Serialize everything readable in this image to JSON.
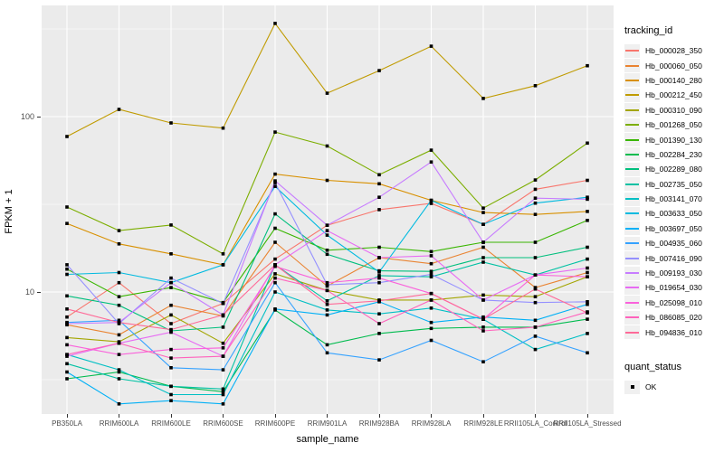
{
  "chart_data": {
    "type": "line",
    "title": "",
    "xlabel": "sample_name",
    "ylabel": "FPKM + 1",
    "y_scale": "log10",
    "grid": true,
    "legend_position": "right",
    "legend_title": "tracking_id",
    "legend2_title": "quant_status",
    "legend2_items": [
      "OK"
    ],
    "y_ticks": [
      {
        "label": "10",
        "value": 10
      },
      {
        "label": "100",
        "value": 100
      }
    ],
    "y_minor_values": [
      3.162,
      31.62,
      316.2
    ],
    "ylim": [
      2.0,
      430
    ],
    "categories": [
      "PB350LA",
      "RRIM600LA",
      "RRIM600LE",
      "RRIM600SE",
      "RRIM600PE",
      "RRIM901LA",
      "RRIM928BA",
      "RRIM928LA",
      "RRIM928LE",
      "RRII105LA_Control",
      "RRII105LA_Stressed"
    ],
    "series": [
      {
        "name": "Hb_000028_350",
        "color": "#F8766D",
        "values": [
          7.2,
          11.3,
          6.6,
          8.6,
          15.4,
          24.0,
          29.5,
          32.0,
          24.3,
          38.5,
          43.3
        ]
      },
      {
        "name": "Hb_000060_050",
        "color": "#EA8331",
        "values": [
          6.5,
          5.7,
          8.4,
          7.3,
          19.2,
          10.8,
          15.7,
          14.5,
          18.0,
          10.6,
          12.9
        ]
      },
      {
        "name": "Hb_000140_280",
        "color": "#D89000",
        "values": [
          24.6,
          18.8,
          16.5,
          14.3,
          47.0,
          43.3,
          41.4,
          33.3,
          28.4,
          27.7,
          28.8
        ]
      },
      {
        "name": "Hb_000212_450",
        "color": "#C09B00",
        "values": [
          77,
          110,
          92,
          86,
          340,
          136,
          183,
          252,
          127,
          150,
          195
        ]
      },
      {
        "name": "Hb_000310_090",
        "color": "#A3A500",
        "values": [
          5.5,
          5.2,
          7.4,
          5.1,
          12.7,
          10.2,
          9.0,
          9.0,
          9.6,
          9.4,
          12.2
        ]
      },
      {
        "name": "Hb_001268_050",
        "color": "#7CAE00",
        "values": [
          30.5,
          22.4,
          24.1,
          16.5,
          81.6,
          68.0,
          46.6,
          64.4,
          30.1,
          43.5,
          70.6
        ]
      },
      {
        "name": "Hb_001390_130",
        "color": "#39B600",
        "values": [
          13.5,
          9.4,
          10.6,
          8.7,
          23.1,
          17.3,
          18.0,
          17.0,
          19.2,
          19.2,
          25.6
        ]
      },
      {
        "name": "Hb_002284_230",
        "color": "#00BB4E",
        "values": [
          3.2,
          3.5,
          2.9,
          2.7,
          7.9,
          5.0,
          5.8,
          6.2,
          6.3,
          6.3,
          7.0
        ]
      },
      {
        "name": "Hb_002289_080",
        "color": "#00BF7D",
        "values": [
          9.5,
          8.4,
          6.0,
          6.3,
          27.9,
          16.4,
          13.2,
          13.1,
          15.7,
          15.7,
          18.0
        ]
      },
      {
        "name": "Hb_002735_050",
        "color": "#00C1A3",
        "values": [
          3.9,
          3.2,
          2.9,
          2.8,
          14.3,
          8.9,
          12.4,
          12.2,
          14.8,
          12.5,
          15.4
        ]
      },
      {
        "name": "Hb_003141_070",
        "color": "#00BFC4",
        "values": [
          4.4,
          3.6,
          2.6,
          2.6,
          10.0,
          7.9,
          7.5,
          8.1,
          7.0,
          4.7,
          5.8
        ]
      },
      {
        "name": "Hb_003633_050",
        "color": "#00BAE0",
        "values": [
          12.6,
          12.9,
          11.3,
          14.3,
          40.0,
          21.1,
          13.0,
          33.3,
          24.3,
          32.1,
          34.7
        ]
      },
      {
        "name": "Hb_003697_050",
        "color": "#00B0F6",
        "values": [
          3.5,
          2.3,
          2.4,
          2.3,
          8.0,
          7.4,
          8.8,
          6.7,
          7.2,
          6.9,
          8.5
        ]
      },
      {
        "name": "Hb_004935_060",
        "color": "#35A2FF",
        "values": [
          6.7,
          6.9,
          3.7,
          3.6,
          11.3,
          4.5,
          4.1,
          5.3,
          4.0,
          5.6,
          4.5
        ]
      },
      {
        "name": "Hb_007416_090",
        "color": "#9590FF",
        "values": [
          14.3,
          6.6,
          12.0,
          8.6,
          42.0,
          11.0,
          11.3,
          12.6,
          9.0,
          8.7,
          8.8
        ]
      },
      {
        "name": "Hb_009193_030",
        "color": "#C77CFF",
        "values": [
          6.6,
          6.7,
          11.3,
          7.4,
          43.0,
          24.0,
          34.7,
          55.1,
          19.2,
          34.3,
          33.8
        ]
      },
      {
        "name": "Hb_019654_030",
        "color": "#E76BF3",
        "values": [
          4.3,
          5.1,
          5.9,
          4.3,
          14.3,
          22.4,
          15.7,
          16.1,
          9.0,
          12.5,
          13.7
        ]
      },
      {
        "name": "Hb_025098_010",
        "color": "#FA62DB",
        "values": [
          5.0,
          4.4,
          4.7,
          4.8,
          14.0,
          11.3,
          12.0,
          9.8,
          7.0,
          12.5,
          12.2
        ]
      },
      {
        "name": "Hb_086085_020",
        "color": "#FF62BC",
        "values": [
          4.4,
          5.1,
          4.2,
          4.3,
          12.0,
          10.2,
          6.6,
          9.0,
          6.0,
          6.3,
          7.7
        ]
      },
      {
        "name": "Hb_094836_010",
        "color": "#FF6A98",
        "values": [
          8.0,
          6.7,
          6.1,
          7.4,
          14.3,
          8.5,
          8.9,
          9.8,
          7.0,
          10.4,
          7.6
        ]
      }
    ]
  }
}
